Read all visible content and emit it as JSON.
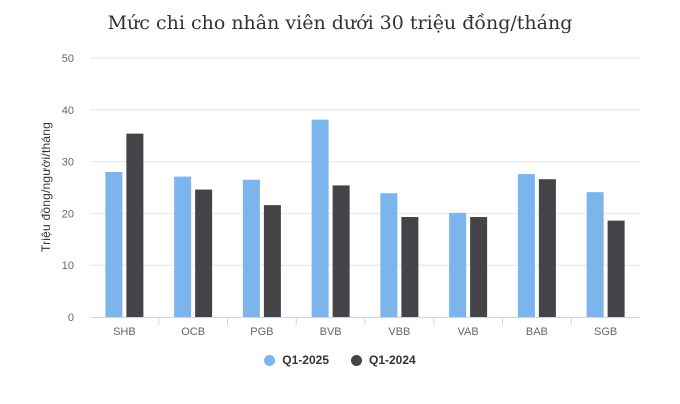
{
  "chart_data": {
    "type": "bar",
    "title": "Mức chi cho nhân viên dưới 30 triệu đồng/tháng",
    "ylabel": "Triệu đồng/người/tháng",
    "xlabel": "",
    "categories": [
      "SHB",
      "OCB",
      "PGB",
      "BVB",
      "VBB",
      "VAB",
      "BAB",
      "SGB"
    ],
    "series": [
      {
        "name": "Q1-2025",
        "color": "#7cb5ec",
        "values": [
          28.0,
          27.1,
          26.5,
          38.1,
          23.9,
          20.1,
          27.6,
          24.1
        ]
      },
      {
        "name": "Q1-2024",
        "color": "#434348",
        "values": [
          35.4,
          24.6,
          21.6,
          25.4,
          19.3,
          19.3,
          26.6,
          18.6
        ]
      }
    ],
    "ylim": [
      0,
      50
    ],
    "yticks": [
      0,
      10,
      20,
      30,
      40,
      50
    ],
    "grid": true,
    "legend_position": "bottom"
  }
}
